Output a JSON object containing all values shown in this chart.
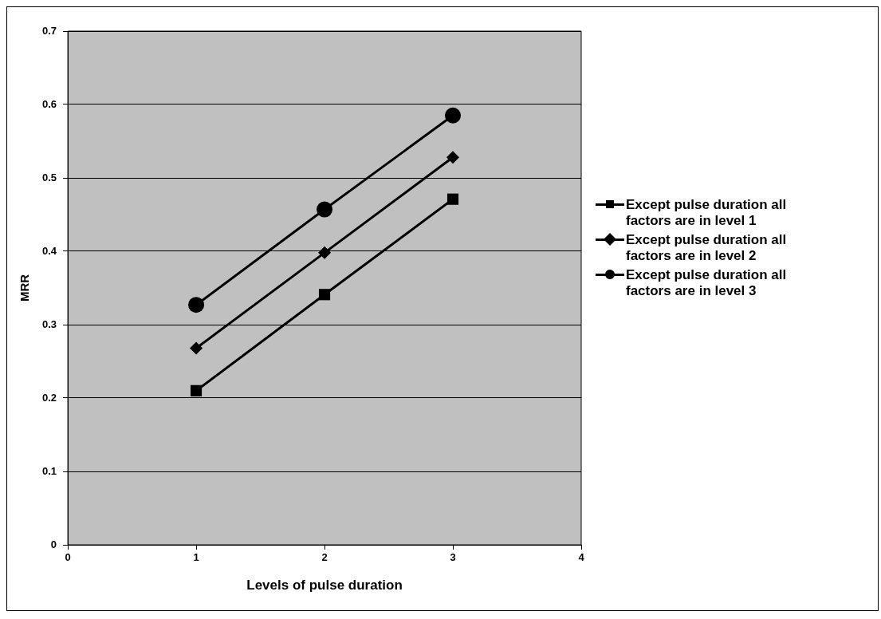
{
  "chart_data": {
    "type": "line",
    "xlabel": "Levels of pulse duration",
    "ylabel": "MRR",
    "xlim": [
      0,
      4
    ],
    "xticks": [
      0,
      1,
      2,
      3,
      4
    ],
    "ylim": [
      0,
      0.7
    ],
    "yticks": [
      0,
      0.1,
      0.2,
      0.3,
      0.4,
      0.5,
      0.6,
      0.7
    ],
    "grid": "y",
    "legend": "right",
    "line_style": "solid",
    "series": [
      {
        "name": "Except pulse duration all factors are in level 1",
        "color": "#000000",
        "marker": "square",
        "x": [
          1,
          2,
          3
        ],
        "values": [
          0.21,
          0.341,
          0.471
        ]
      },
      {
        "name": "Except pulse duration all factors are in level 2",
        "color": "#000000",
        "marker": "diamond",
        "x": [
          1,
          2,
          3
        ],
        "values": [
          0.268,
          0.398,
          0.528
        ]
      },
      {
        "name": "Except pulse duration all factors are in level 3",
        "color": "#000000",
        "marker": "circle",
        "x": [
          1,
          2,
          3
        ],
        "values": [
          0.327,
          0.457,
          0.585
        ]
      }
    ]
  }
}
